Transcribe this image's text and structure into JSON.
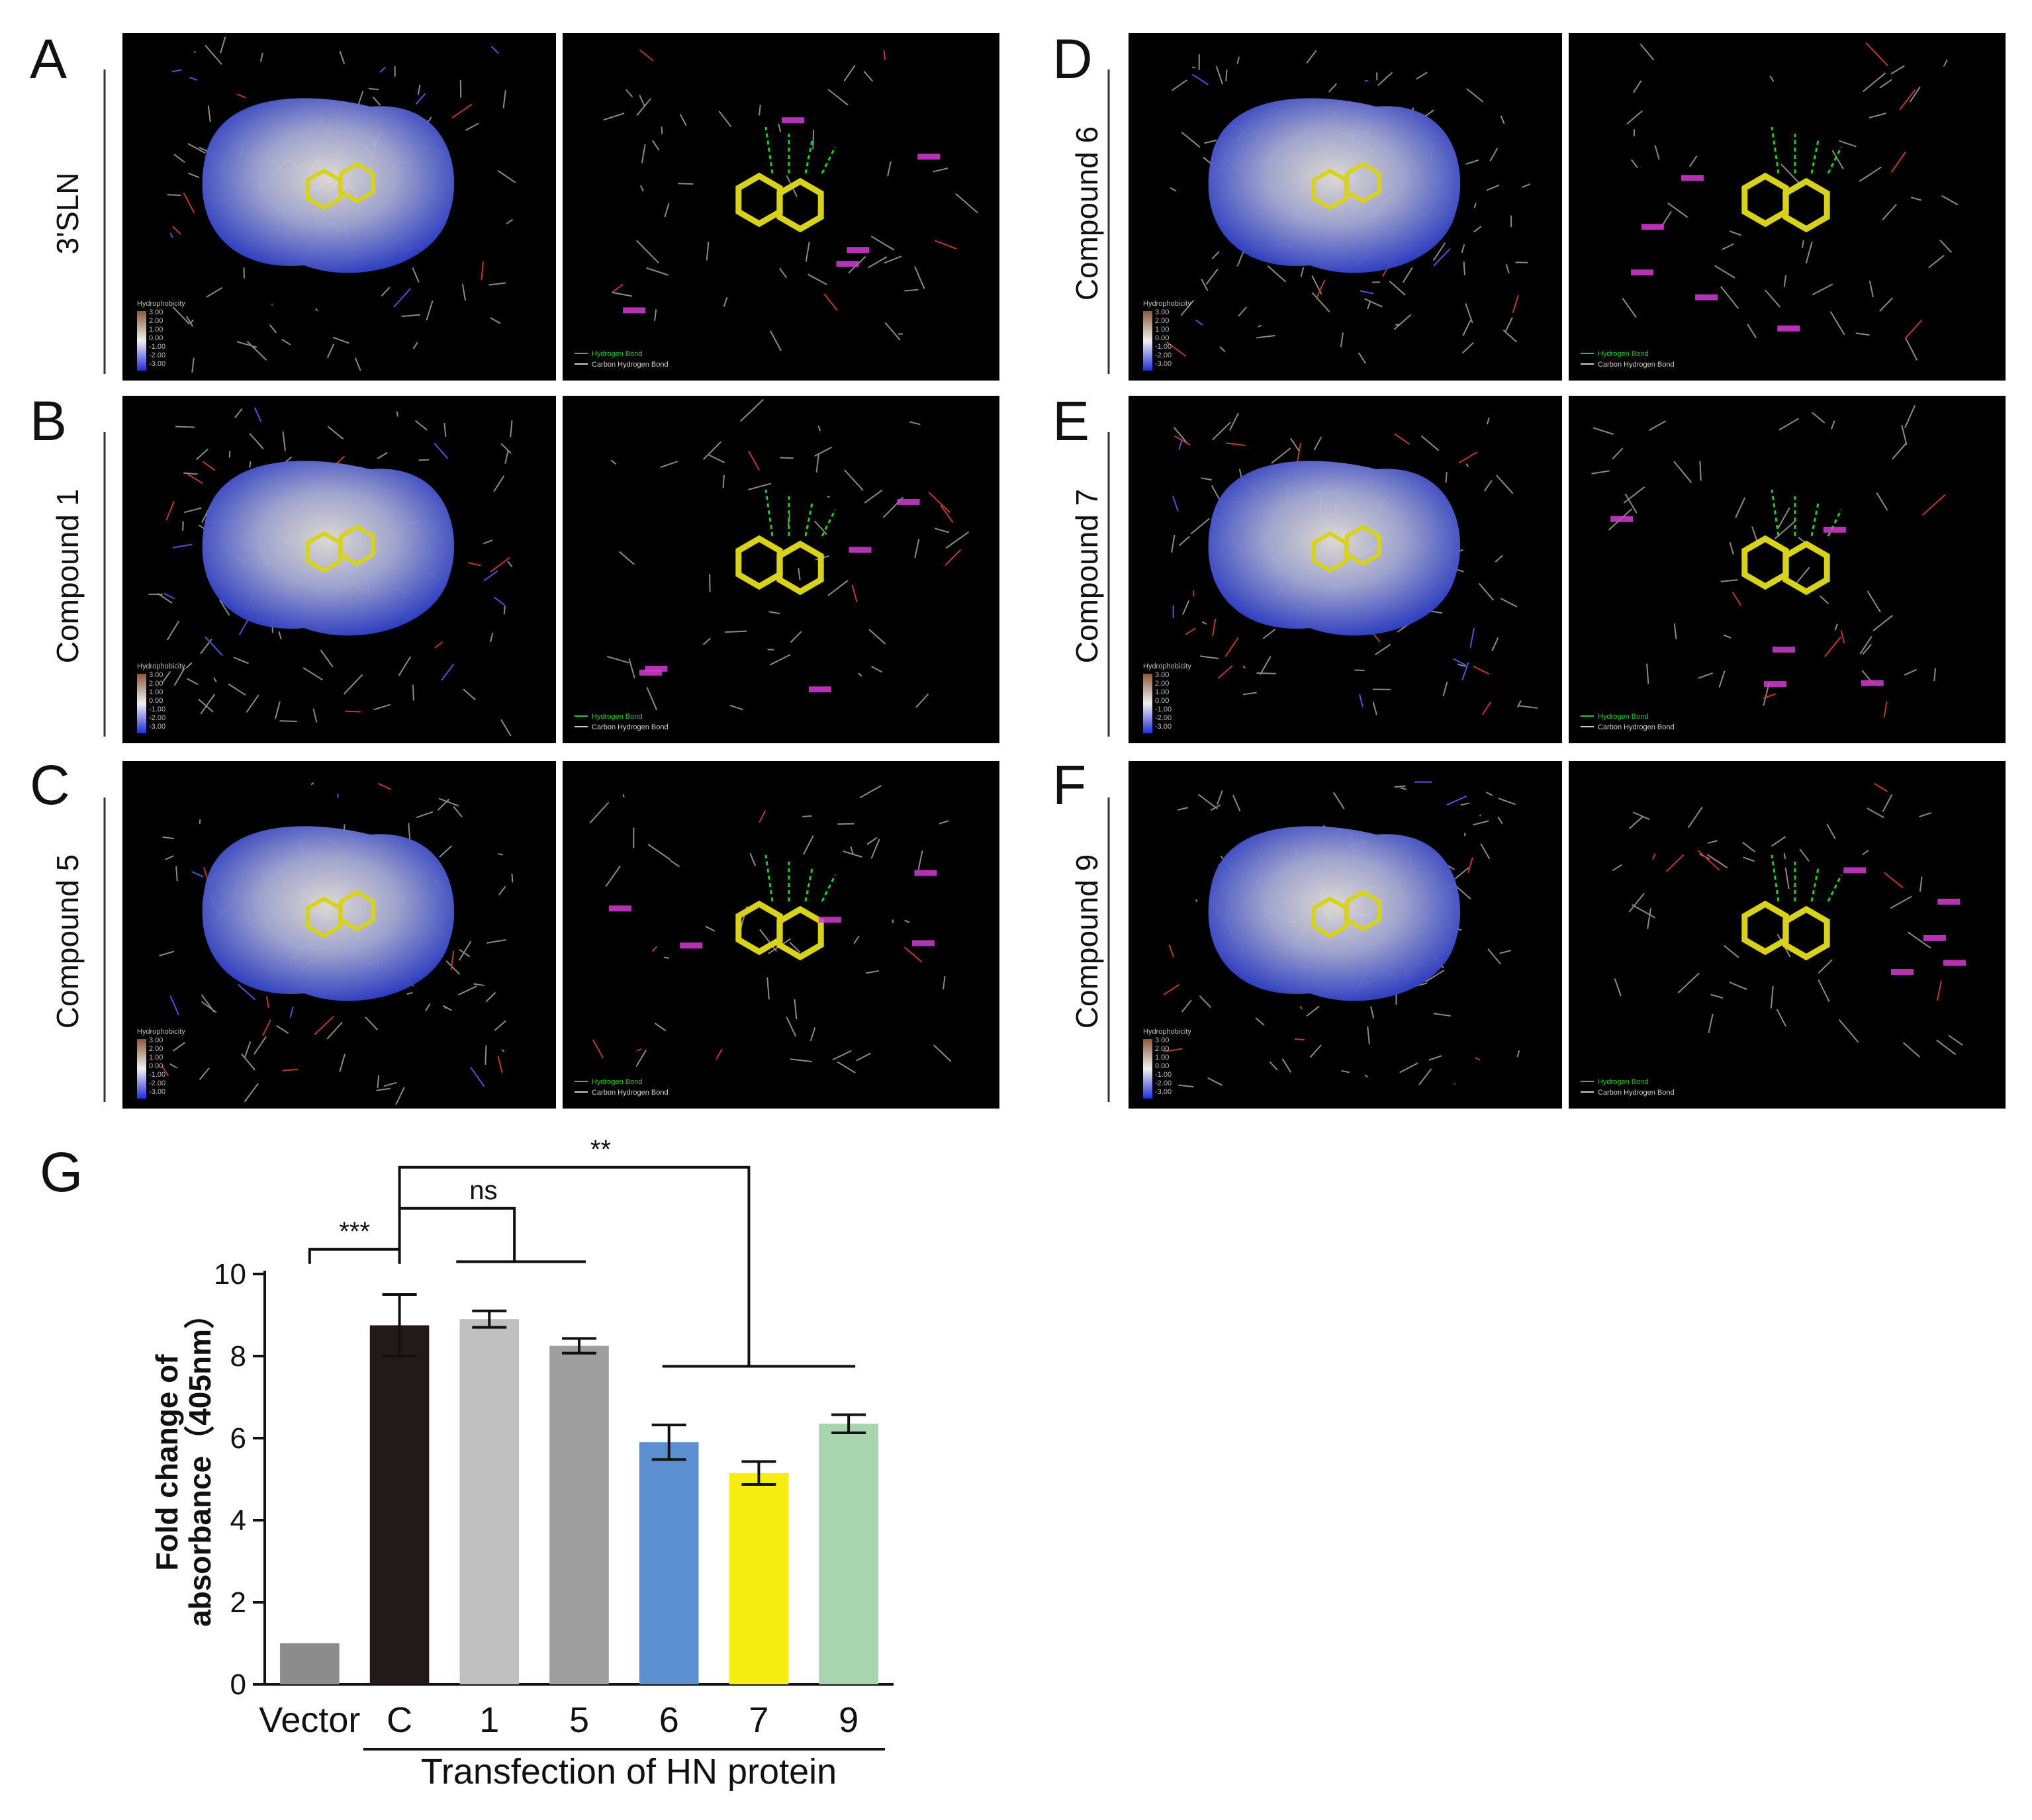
{
  "panels": [
    {
      "letter": "A",
      "label": "3'SLN",
      "surface_labels": [
        "Hydrophobicity",
        "3.00",
        "2.00",
        "1.00",
        "0.00",
        "-1.00",
        "-2.00",
        "-3.00"
      ],
      "bond_labels": [
        "Hydrogen Bond",
        "Carbon Hydrogen Bond"
      ]
    },
    {
      "letter": "B",
      "label": "Compound 1",
      "surface_labels": [
        "Hydrophobicity",
        "3.00",
        "2.00",
        "1.00",
        "0.00",
        "-1.00",
        "-2.00",
        "-3.00"
      ],
      "bond_labels": [
        "Hydrogen Bond",
        "Carbon Hydrogen Bond"
      ]
    },
    {
      "letter": "C",
      "label": "Compound 5",
      "surface_labels": [
        "Hydrophobicity",
        "3.00",
        "2.00",
        "1.00",
        "0.00",
        "-1.00",
        "-2.00",
        "-3.00"
      ],
      "bond_labels": [
        "Hydrogen Bond",
        "Carbon Hydrogen Bond"
      ]
    },
    {
      "letter": "D",
      "label": "Compound 6",
      "surface_labels": [
        "Hydrophobicity",
        "3.00",
        "2.00",
        "1.00",
        "0.00",
        "-1.00",
        "-2.00",
        "-3.00"
      ],
      "bond_labels": [
        "Hydrogen Bond",
        "Carbon Hydrogen Bond"
      ]
    },
    {
      "letter": "E",
      "label": "Compound 7",
      "surface_labels": [
        "Hydrophobicity",
        "3.00",
        "2.00",
        "1.00",
        "0.00",
        "-1.00",
        "-2.00",
        "-3.00"
      ],
      "bond_labels": [
        "Hydrogen Bond",
        "Carbon Hydrogen Bond"
      ]
    },
    {
      "letter": "F",
      "label": "Compound 9",
      "surface_labels": [
        "Hydrophobicity",
        "3.00",
        "2.00",
        "1.00",
        "0.00",
        "-1.00",
        "-2.00",
        "-3.00"
      ],
      "bond_labels": [
        "Hydrogen Bond",
        "Carbon Hydrogen Bond"
      ]
    }
  ],
  "colors": {
    "surface_blue": "#3a4fd0",
    "surface_white": "#e8e4dc",
    "ligand_yellow": "#d8d21a",
    "hbond_green": "#22cc22",
    "residue_magenta": "#d23cd2"
  },
  "chart_letter": "G",
  "chart_data": {
    "type": "bar",
    "categories": [
      "Vector",
      "C",
      "1",
      "5",
      "6",
      "7",
      "9"
    ],
    "values": [
      1.0,
      8.75,
      8.9,
      8.25,
      5.9,
      5.15,
      6.35
    ],
    "errors": [
      0,
      0.75,
      0.2,
      0.18,
      0.42,
      0.28,
      0.22
    ],
    "bar_colors": [
      "#8c8c8c",
      "#221a1a",
      "#c0c0c0",
      "#9e9e9e",
      "#5b8fd0",
      "#f5ee10",
      "#a8d5ae"
    ],
    "ylabel_line1": "Fold change of",
    "ylabel_line2": "absorbance（405nm）",
    "xlabel": "Transfection of HN protein",
    "ylim": [
      0,
      10
    ],
    "yticks": [
      0,
      2,
      4,
      6,
      8,
      10
    ],
    "significance": [
      {
        "label": "***",
        "compare": "Vector vs C"
      },
      {
        "label": "ns",
        "compare": "C vs 1, 5"
      },
      {
        "label": "**",
        "compare": "C vs 6, 7, 9"
      }
    ]
  }
}
